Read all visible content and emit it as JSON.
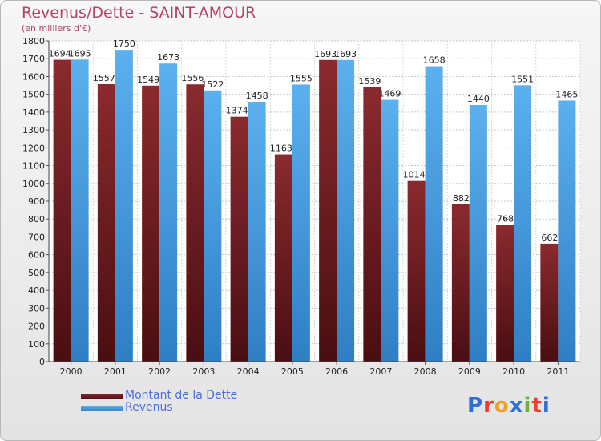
{
  "title": "Revenus/Dette - SAINT-AMOUR",
  "subtitle": "(en milliers d'€)",
  "brand": {
    "text": "Proxiti",
    "letters": [
      "P",
      "r",
      "o",
      "x",
      "i",
      "t",
      "i"
    ],
    "colors": [
      "#2e6fd6",
      "#e8402a",
      "#f0a020",
      "#2e6fd6",
      "#6cb33f",
      "#e8402a",
      "#2e6fd6"
    ]
  },
  "colors": {
    "dette": "#7a1f25",
    "revenus": "#4aa3e3",
    "title": "#b0456a",
    "legend_text": "#4a6fe0"
  },
  "chart_data": {
    "type": "bar",
    "title": "Revenus/Dette - SAINT-AMOUR",
    "subtitle": "(en milliers d'€)",
    "categories": [
      "2000",
      "2001",
      "2002",
      "2003",
      "2004",
      "2005",
      "2006",
      "2007",
      "2008",
      "2009",
      "2010",
      "2011"
    ],
    "series": [
      {
        "name": "Montant de la Dette",
        "values": [
          1694,
          1557,
          1549,
          1556,
          1374,
          1163,
          1693,
          1539,
          1014,
          882,
          768,
          662
        ],
        "color": "#7a1f25"
      },
      {
        "name": "Revenus",
        "values": [
          1695,
          1750,
          1673,
          1522,
          1458,
          1555,
          1693,
          1469,
          1658,
          1440,
          1551,
          1465
        ],
        "color": "#4aa3e3"
      }
    ],
    "ylim": [
      0,
      1800
    ],
    "yticks": [
      0,
      100,
      200,
      300,
      400,
      500,
      600,
      700,
      800,
      900,
      1000,
      1100,
      1200,
      1300,
      1400,
      1500,
      1600,
      1700,
      1800
    ],
    "grid": true,
    "legend": "bottom-left"
  }
}
